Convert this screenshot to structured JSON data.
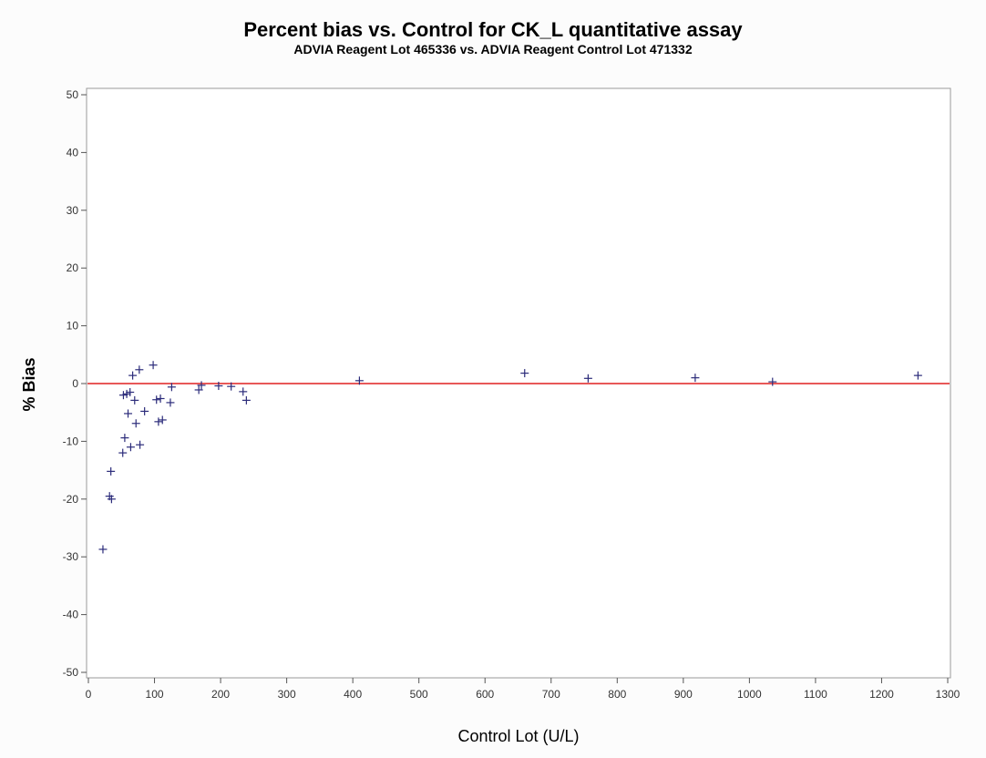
{
  "chart_data": {
    "type": "scatter",
    "title": "Percent bias vs. Control for CK_L quantitative assay",
    "subtitle": "ADVIA Reagent Lot 465336 vs. ADVIA Reagent Control Lot 471332",
    "xlabel": "Control Lot (U/L)",
    "ylabel": "% Bias",
    "xlim": [
      0,
      1300
    ],
    "ylim": [
      -50,
      50
    ],
    "xticks": [
      0,
      100,
      200,
      300,
      400,
      500,
      600,
      700,
      800,
      900,
      1000,
      1100,
      1200,
      1300
    ],
    "yticks": [
      -50,
      -40,
      -30,
      -20,
      -10,
      0,
      10,
      20,
      30,
      40,
      50
    ],
    "grid": false,
    "reference_line": {
      "y": 0,
      "color": "#e02020"
    },
    "marker": "plus",
    "marker_color": "#2b2b7a",
    "points": [
      {
        "x": 22,
        "y": -28.7
      },
      {
        "x": 32,
        "y": -19.5
      },
      {
        "x": 35,
        "y": -20.0
      },
      {
        "x": 34,
        "y": -15.2
      },
      {
        "x": 52,
        "y": -12.0
      },
      {
        "x": 55,
        "y": -9.4
      },
      {
        "x": 53,
        "y": -2.0
      },
      {
        "x": 58,
        "y": -1.8
      },
      {
        "x": 60,
        "y": -5.2
      },
      {
        "x": 63,
        "y": -1.5
      },
      {
        "x": 64,
        "y": -11.0
      },
      {
        "x": 67,
        "y": 1.4
      },
      {
        "x": 70,
        "y": -2.9
      },
      {
        "x": 72,
        "y": -6.9
      },
      {
        "x": 77,
        "y": 2.4
      },
      {
        "x": 78,
        "y": -10.6
      },
      {
        "x": 85,
        "y": -4.8
      },
      {
        "x": 98,
        "y": 3.2
      },
      {
        "x": 103,
        "y": -2.8
      },
      {
        "x": 106,
        "y": -6.6
      },
      {
        "x": 109,
        "y": -2.6
      },
      {
        "x": 112,
        "y": -6.3
      },
      {
        "x": 124,
        "y": -3.3
      },
      {
        "x": 126,
        "y": -0.6
      },
      {
        "x": 167,
        "y": -1.1
      },
      {
        "x": 171,
        "y": -0.3
      },
      {
        "x": 197,
        "y": -0.4
      },
      {
        "x": 216,
        "y": -0.5
      },
      {
        "x": 234,
        "y": -1.4
      },
      {
        "x": 239,
        "y": -2.9
      },
      {
        "x": 410,
        "y": 0.5
      },
      {
        "x": 660,
        "y": 1.8
      },
      {
        "x": 756,
        "y": 0.9
      },
      {
        "x": 918,
        "y": 1.0
      },
      {
        "x": 1035,
        "y": 0.3
      },
      {
        "x": 1255,
        "y": 1.4
      }
    ]
  }
}
